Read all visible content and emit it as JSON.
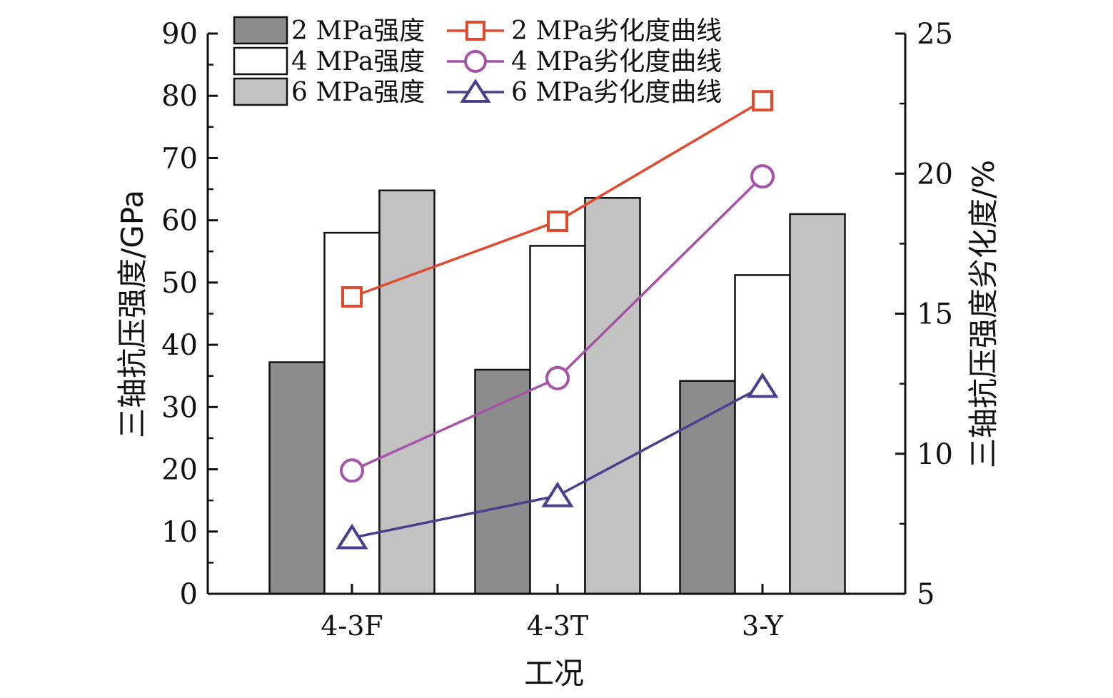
{
  "chart_data": {
    "type": "bar",
    "categories": [
      "4-3F",
      "4-3T",
      "3-Y"
    ],
    "xlabel": "工况",
    "ylabel_left": "三轴抗压强度/GPa",
    "ylabel_right": "三轴抗压强度劣化度/%",
    "ylim_left": [
      0,
      90
    ],
    "yticks_left": [
      0,
      10,
      20,
      30,
      40,
      50,
      60,
      70,
      80,
      90
    ],
    "ylim_right": [
      5,
      25
    ],
    "yticks_right": [
      5,
      10,
      15,
      20,
      25
    ],
    "grid": false,
    "legend_position": "top",
    "bar_series": [
      {
        "name": "2 MPa强度",
        "values": [
          37.2,
          36.0,
          34.2
        ],
        "color": "#8c8c8c"
      },
      {
        "name": "4 MPa强度",
        "values": [
          58.0,
          55.9,
          51.2
        ],
        "color": "#ffffff"
      },
      {
        "name": "6 MPa强度",
        "values": [
          64.8,
          63.6,
          61.0
        ],
        "color": "#c2c2c2"
      }
    ],
    "line_series": [
      {
        "name": "2 MPa劣化度曲线",
        "values": [
          15.6,
          18.3,
          22.6
        ],
        "color": "#e04a2e",
        "marker": "square"
      },
      {
        "name": "4 MPa劣化度曲线",
        "values": [
          9.4,
          12.7,
          19.9
        ],
        "color": "#a552a8",
        "marker": "circle"
      },
      {
        "name": "6 MPa劣化度曲线",
        "values": [
          7.0,
          8.5,
          12.4
        ],
        "color": "#4a3f8c",
        "marker": "triangle"
      }
    ]
  }
}
